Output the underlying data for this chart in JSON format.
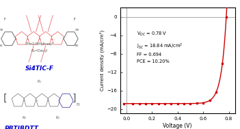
{
  "xlabel": "Voltage (V)",
  "ylabel": "Current density (mA/cm²)",
  "xlim": [
    -0.05,
    0.85
  ],
  "ylim": [
    -21,
    2
  ],
  "yticks": [
    0,
    -4,
    -8,
    -12,
    -16,
    -20
  ],
  "xticks": [
    0.0,
    0.2,
    0.4,
    0.6,
    0.8
  ],
  "voc": 0.78,
  "jsc": 18.84,
  "n_ideal": 1.5,
  "line_color": "#cc0000",
  "marker_color": "#cc0000",
  "bg_color": "#ffffff",
  "grid_color": "#999999",
  "mol1_name": "Si4TIC-F",
  "mol1_color": "#0000cc",
  "mol1_structure_color": "#e87070",
  "mol2_name": "PBTIBDTT",
  "mol2_color": "#0000cc",
  "mol2_structure_color": "#888888",
  "figsize": [
    3.51,
    1.89
  ],
  "dpi": 100,
  "annot_voc": "V$_{OC}$ = 0.78 V",
  "annot_jsc": "J$_{SC}$ = 18.84 mA/cm$^2$",
  "annot_ff": "FF = 0.694",
  "annot_pce": "PCE = 10.20%"
}
